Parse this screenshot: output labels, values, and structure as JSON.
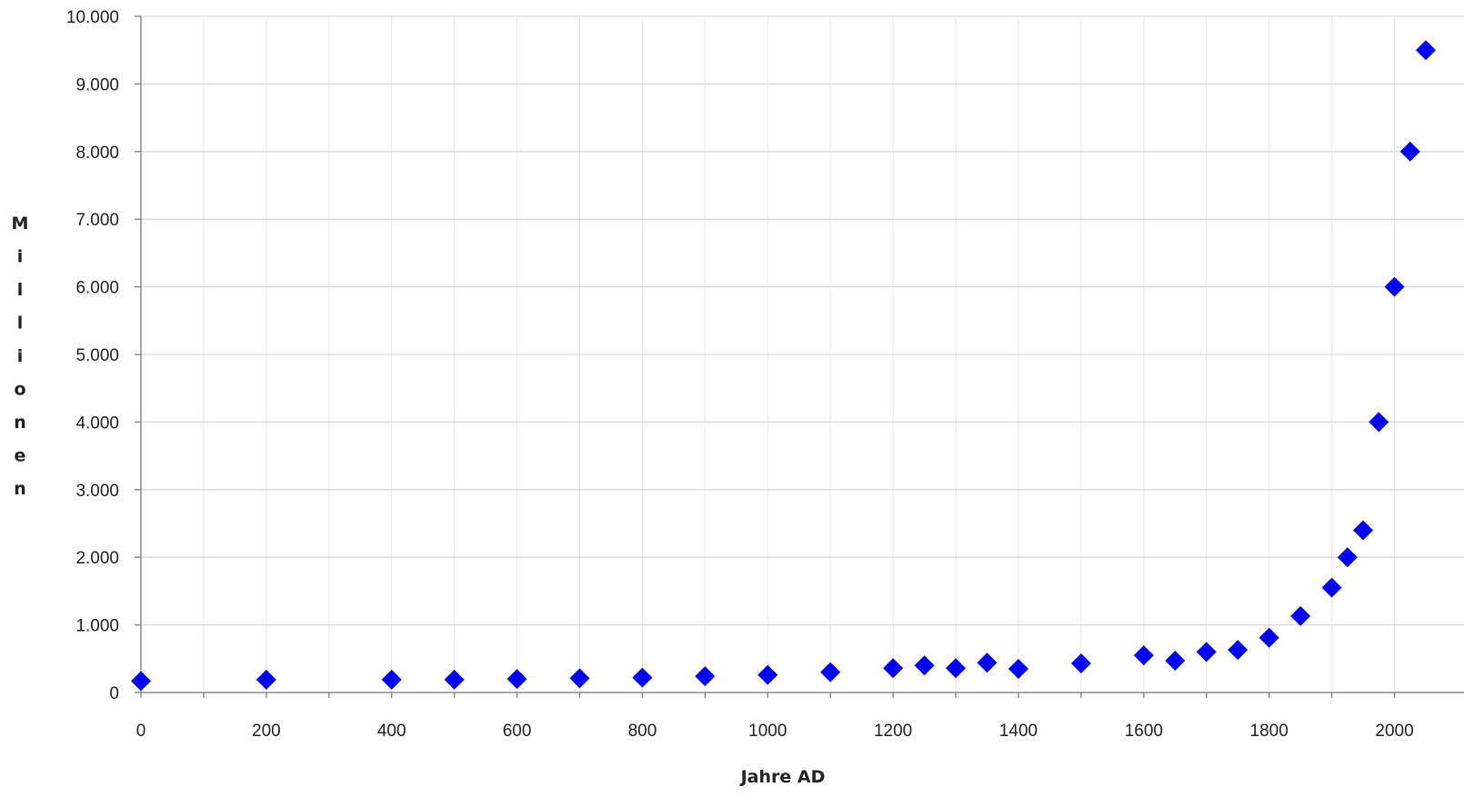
{
  "chart_data": {
    "type": "scatter",
    "title": "",
    "xlabel": "Jahre AD",
    "ylabel": "Millionen",
    "xlim": [
      0,
      2050
    ],
    "ylim": [
      0,
      10000
    ],
    "x_ticks": [
      0,
      200,
      400,
      600,
      800,
      1000,
      1200,
      1400,
      1600,
      1800,
      2000
    ],
    "x_tick_labels": [
      "0",
      "200",
      "400",
      "600",
      "800",
      "1000",
      "1200",
      "1400",
      "1600",
      "1800",
      "2000"
    ],
    "x_minor_step": 100,
    "y_ticks": [
      0,
      1000,
      2000,
      3000,
      4000,
      5000,
      6000,
      7000,
      8000,
      9000,
      10000
    ],
    "y_tick_labels": [
      "0",
      "1.000",
      "2.000",
      "3.000",
      "4.000",
      "5.000",
      "6.000",
      "7.000",
      "8.000",
      "9.000",
      "10.000"
    ],
    "grid": true,
    "legend": "none",
    "marker": "diamond",
    "color": "#0000ee",
    "series": [
      {
        "points": [
          {
            "x": 0,
            "y": 170
          },
          {
            "x": 200,
            "y": 190
          },
          {
            "x": 400,
            "y": 190
          },
          {
            "x": 500,
            "y": 190
          },
          {
            "x": 600,
            "y": 200
          },
          {
            "x": 700,
            "y": 210
          },
          {
            "x": 800,
            "y": 220
          },
          {
            "x": 900,
            "y": 240
          },
          {
            "x": 1000,
            "y": 260
          },
          {
            "x": 1100,
            "y": 300
          },
          {
            "x": 1200,
            "y": 360
          },
          {
            "x": 1250,
            "y": 400
          },
          {
            "x": 1300,
            "y": 360
          },
          {
            "x": 1350,
            "y": 440
          },
          {
            "x": 1400,
            "y": 350
          },
          {
            "x": 1500,
            "y": 430
          },
          {
            "x": 1600,
            "y": 550
          },
          {
            "x": 1650,
            "y": 470
          },
          {
            "x": 1700,
            "y": 600
          },
          {
            "x": 1750,
            "y": 630
          },
          {
            "x": 1800,
            "y": 810
          },
          {
            "x": 1850,
            "y": 1130
          },
          {
            "x": 1900,
            "y": 1550
          },
          {
            "x": 1925,
            "y": 2000
          },
          {
            "x": 1950,
            "y": 2400
          },
          {
            "x": 1975,
            "y": 4000
          },
          {
            "x": 2000,
            "y": 6000
          },
          {
            "x": 2025,
            "y": 8000
          },
          {
            "x": 2050,
            "y": 9500
          }
        ]
      }
    ]
  }
}
